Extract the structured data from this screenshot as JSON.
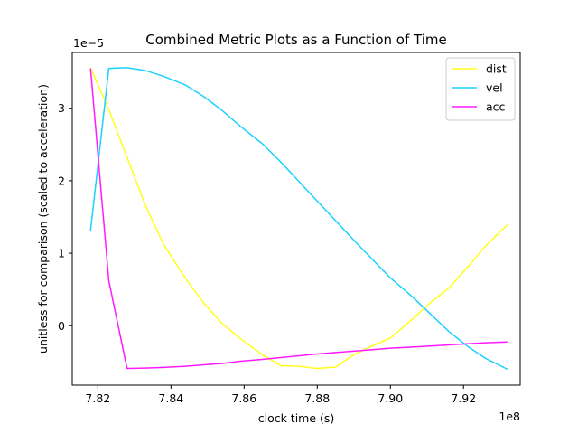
{
  "chart_data": {
    "type": "line",
    "title": "Combined Metric Plots as a Function of Time",
    "xlabel": "clock time (s)",
    "ylabel": "unitless for comparison (scaled to acceleration)",
    "x_offset_label": "1e8",
    "y_offset_label": "1e−5",
    "xlim": [
      7.813,
      7.9355
    ],
    "ylim": [
      -0.82,
      3.77
    ],
    "xticks": [
      7.82,
      7.84,
      7.86,
      7.88,
      7.9,
      7.92
    ],
    "xtick_labels": [
      "7.82",
      "7.84",
      "7.86",
      "7.88",
      "7.90",
      "7.92"
    ],
    "yticks": [
      0,
      1,
      2,
      3
    ],
    "ytick_labels": [
      "0",
      "1",
      "2",
      "3"
    ],
    "legend_position": "top-right",
    "grid": false,
    "series": [
      {
        "name": "dist",
        "color": "#ffff1a",
        "x": [
          7.818,
          7.823,
          7.828,
          7.833,
          7.838,
          7.844,
          7.849,
          7.854,
          7.859,
          7.865,
          7.87,
          7.875,
          7.88,
          7.885,
          7.89,
          7.895,
          7.9,
          7.906,
          7.911,
          7.916,
          7.921,
          7.926,
          7.932
        ],
        "y": [
          3.56,
          2.98,
          2.32,
          1.66,
          1.12,
          0.65,
          0.31,
          0.03,
          -0.18,
          -0.4,
          -0.55,
          -0.56,
          -0.59,
          -0.57,
          -0.4,
          -0.28,
          -0.17,
          0.09,
          0.32,
          0.52,
          0.8,
          1.1,
          1.39
        ]
      },
      {
        "name": "vel",
        "color": "#1ad1ff",
        "x": [
          7.818,
          7.823,
          7.828,
          7.833,
          7.838,
          7.844,
          7.849,
          7.854,
          7.859,
          7.865,
          7.87,
          7.875,
          7.88,
          7.885,
          7.89,
          7.895,
          7.9,
          7.906,
          7.911,
          7.916,
          7.921,
          7.926,
          7.932
        ],
        "y": [
          1.31,
          3.55,
          3.56,
          3.52,
          3.44,
          3.32,
          3.16,
          2.97,
          2.75,
          2.51,
          2.26,
          1.99,
          1.72,
          1.45,
          1.18,
          0.92,
          0.66,
          0.4,
          0.16,
          -0.08,
          -0.28,
          -0.45,
          -0.6
        ]
      },
      {
        "name": "acc",
        "color": "#ff1aff",
        "x": [
          7.818,
          7.823,
          7.828,
          7.833,
          7.838,
          7.844,
          7.849,
          7.854,
          7.859,
          7.865,
          7.87,
          7.875,
          7.88,
          7.885,
          7.89,
          7.895,
          7.9,
          7.906,
          7.911,
          7.916,
          7.921,
          7.926,
          7.932
        ],
        "y": [
          3.55,
          0.62,
          -0.59,
          -0.585,
          -0.575,
          -0.56,
          -0.54,
          -0.52,
          -0.49,
          -0.465,
          -0.44,
          -0.415,
          -0.39,
          -0.37,
          -0.35,
          -0.33,
          -0.31,
          -0.295,
          -0.28,
          -0.265,
          -0.25,
          -0.235,
          -0.225
        ]
      }
    ]
  }
}
